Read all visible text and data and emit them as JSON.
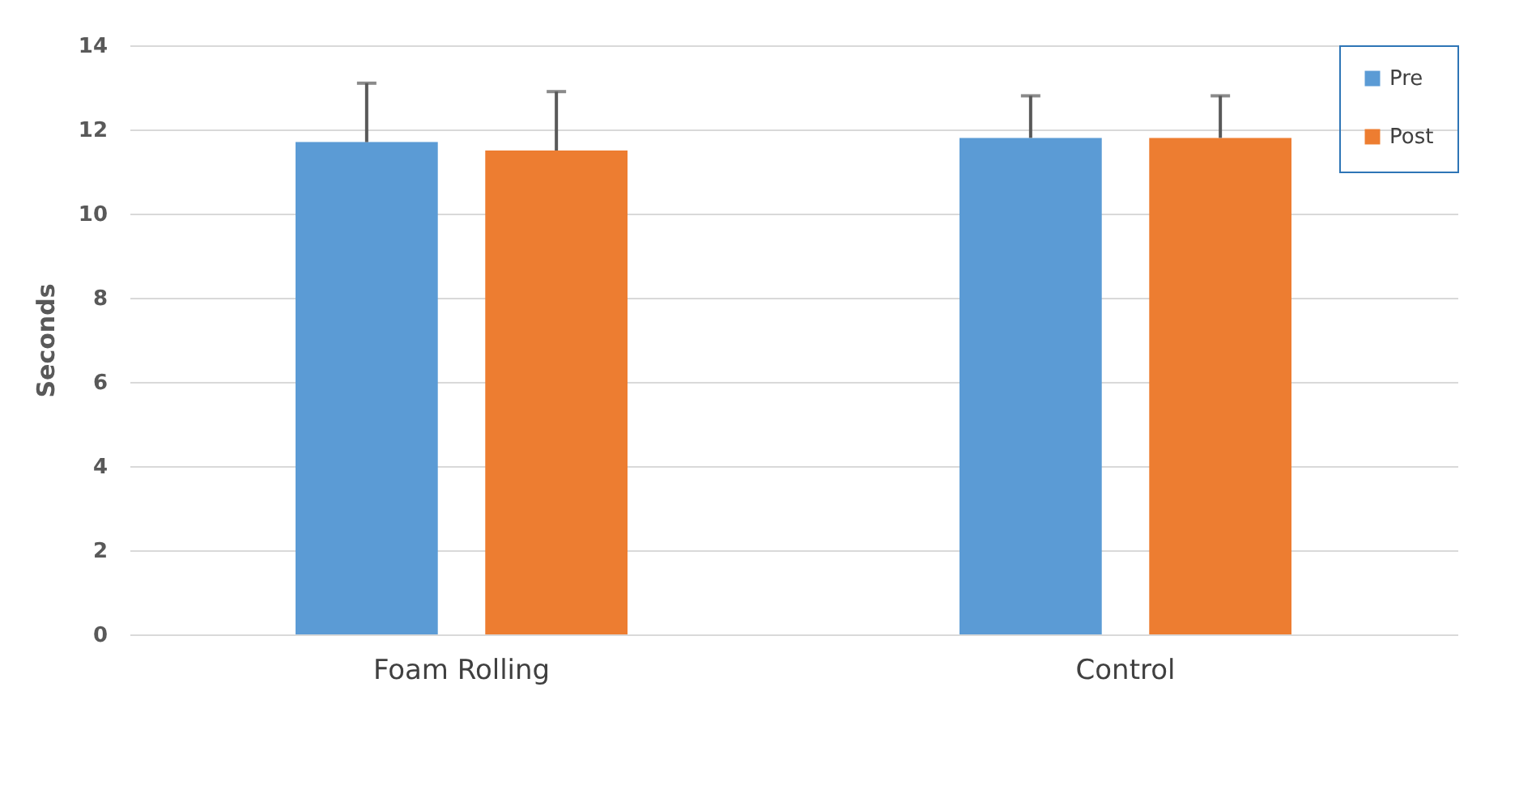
{
  "chart_data": {
    "type": "bar",
    "ylabel": "Seconds",
    "categories": [
      "Foam Rolling",
      "Control"
    ],
    "series": [
      {
        "name": "Pre",
        "color": "#5b9bd5",
        "values": [
          11.7,
          11.8
        ],
        "errors": [
          [
            11.7,
            13.1
          ],
          [
            11.8,
            12.8
          ]
        ]
      },
      {
        "name": "Post",
        "color": "#ed7d31",
        "values": [
          11.5,
          11.8
        ],
        "errors": [
          [
            11.5,
            12.9
          ],
          [
            11.8,
            12.8
          ]
        ]
      }
    ],
    "ylim": [
      0,
      14
    ],
    "yticks": [
      0,
      2,
      4,
      6,
      8,
      10,
      12,
      14
    ],
    "grid": "y",
    "legend": "top right"
  }
}
